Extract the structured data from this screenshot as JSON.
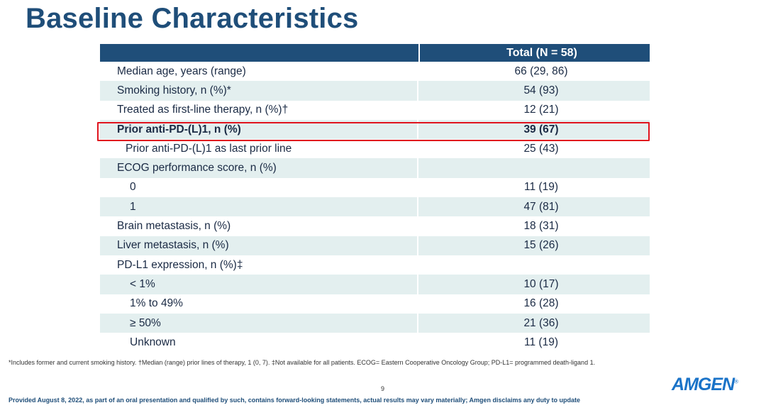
{
  "title": "Baseline Characteristics",
  "table": {
    "header_total": "Total (N = 58)",
    "rows": [
      {
        "label": "Median age, years (range)",
        "value": "66 (29, 86)"
      },
      {
        "label": "Smoking history, n (%)*",
        "value": "54 (93)"
      },
      {
        "label": "Treated as first-line therapy, n (%)†",
        "value": "12 (21)"
      },
      {
        "label": "Prior anti-PD-(L)1, n (%)",
        "value": "39 (67)"
      },
      {
        "label": "Prior anti-PD-(L)1 as last prior line",
        "value": "25 (43)"
      },
      {
        "label": "ECOG performance score, n (%)",
        "value": ""
      },
      {
        "label": "0",
        "value": "11 (19)"
      },
      {
        "label": "1",
        "value": "47 (81)"
      },
      {
        "label": "Brain metastasis, n (%)",
        "value": "18 (31)"
      },
      {
        "label": "Liver metastasis, n (%)",
        "value": "15 (26)"
      },
      {
        "label": "PD-L1 expression, n (%)‡",
        "value": ""
      },
      {
        "label": "< 1%",
        "value": "10 (17)"
      },
      {
        "label": "1% to 49%",
        "value": "16 (28)"
      },
      {
        "label": "≥ 50%",
        "value": "21 (36)"
      },
      {
        "label": "Unknown",
        "value": "11 (19)"
      }
    ]
  },
  "footnote": "*Includes former and current smoking history. †Median (range) prior lines of therapy, 1 (0, 7). ‡Not available for all patients. ECOG= Eastern Cooperative Oncology Group; PD-L1= programmed death-ligand 1.",
  "page_number": "9",
  "disclaimer": "Provided August 8, 2022, as part of an oral presentation and qualified by such, contains forward-looking statements, actual results may vary materially; Amgen disclaims any duty to update",
  "logo": {
    "text": "AMGEN",
    "mark": "®"
  },
  "colors": {
    "title": "#1f4e79",
    "header_bg": "#1f4e79",
    "row_shade": "#e3efef",
    "highlight": "#e0141e",
    "logo": "#1a73c8"
  }
}
